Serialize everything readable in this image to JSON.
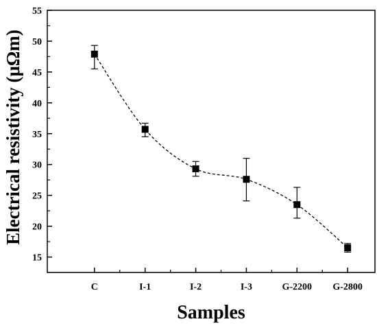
{
  "chart_data": {
    "type": "scatter",
    "categories": [
      "C",
      "I-1",
      "I-2",
      "I-3",
      "G-2200",
      "G-2800"
    ],
    "series": [
      {
        "values": [
          47.9,
          35.7,
          29.3,
          27.6,
          23.5,
          16.5
        ],
        "error_upper": [
          49.3,
          36.7,
          30.5,
          31.0,
          26.3,
          17.2
        ],
        "error_lower": [
          45.5,
          34.5,
          28.1,
          24.1,
          21.3,
          15.8
        ],
        "marker": "square",
        "line_style": "dashed-smooth",
        "color": "#000000"
      }
    ],
    "xlabel": "Samples",
    "ylabel": "Electrical resistivity (μΩm)",
    "ylim": [
      12.5,
      55
    ],
    "yticks": [
      15,
      20,
      25,
      30,
      35,
      40,
      45,
      50,
      55
    ],
    "grid": false,
    "legend": "none"
  }
}
